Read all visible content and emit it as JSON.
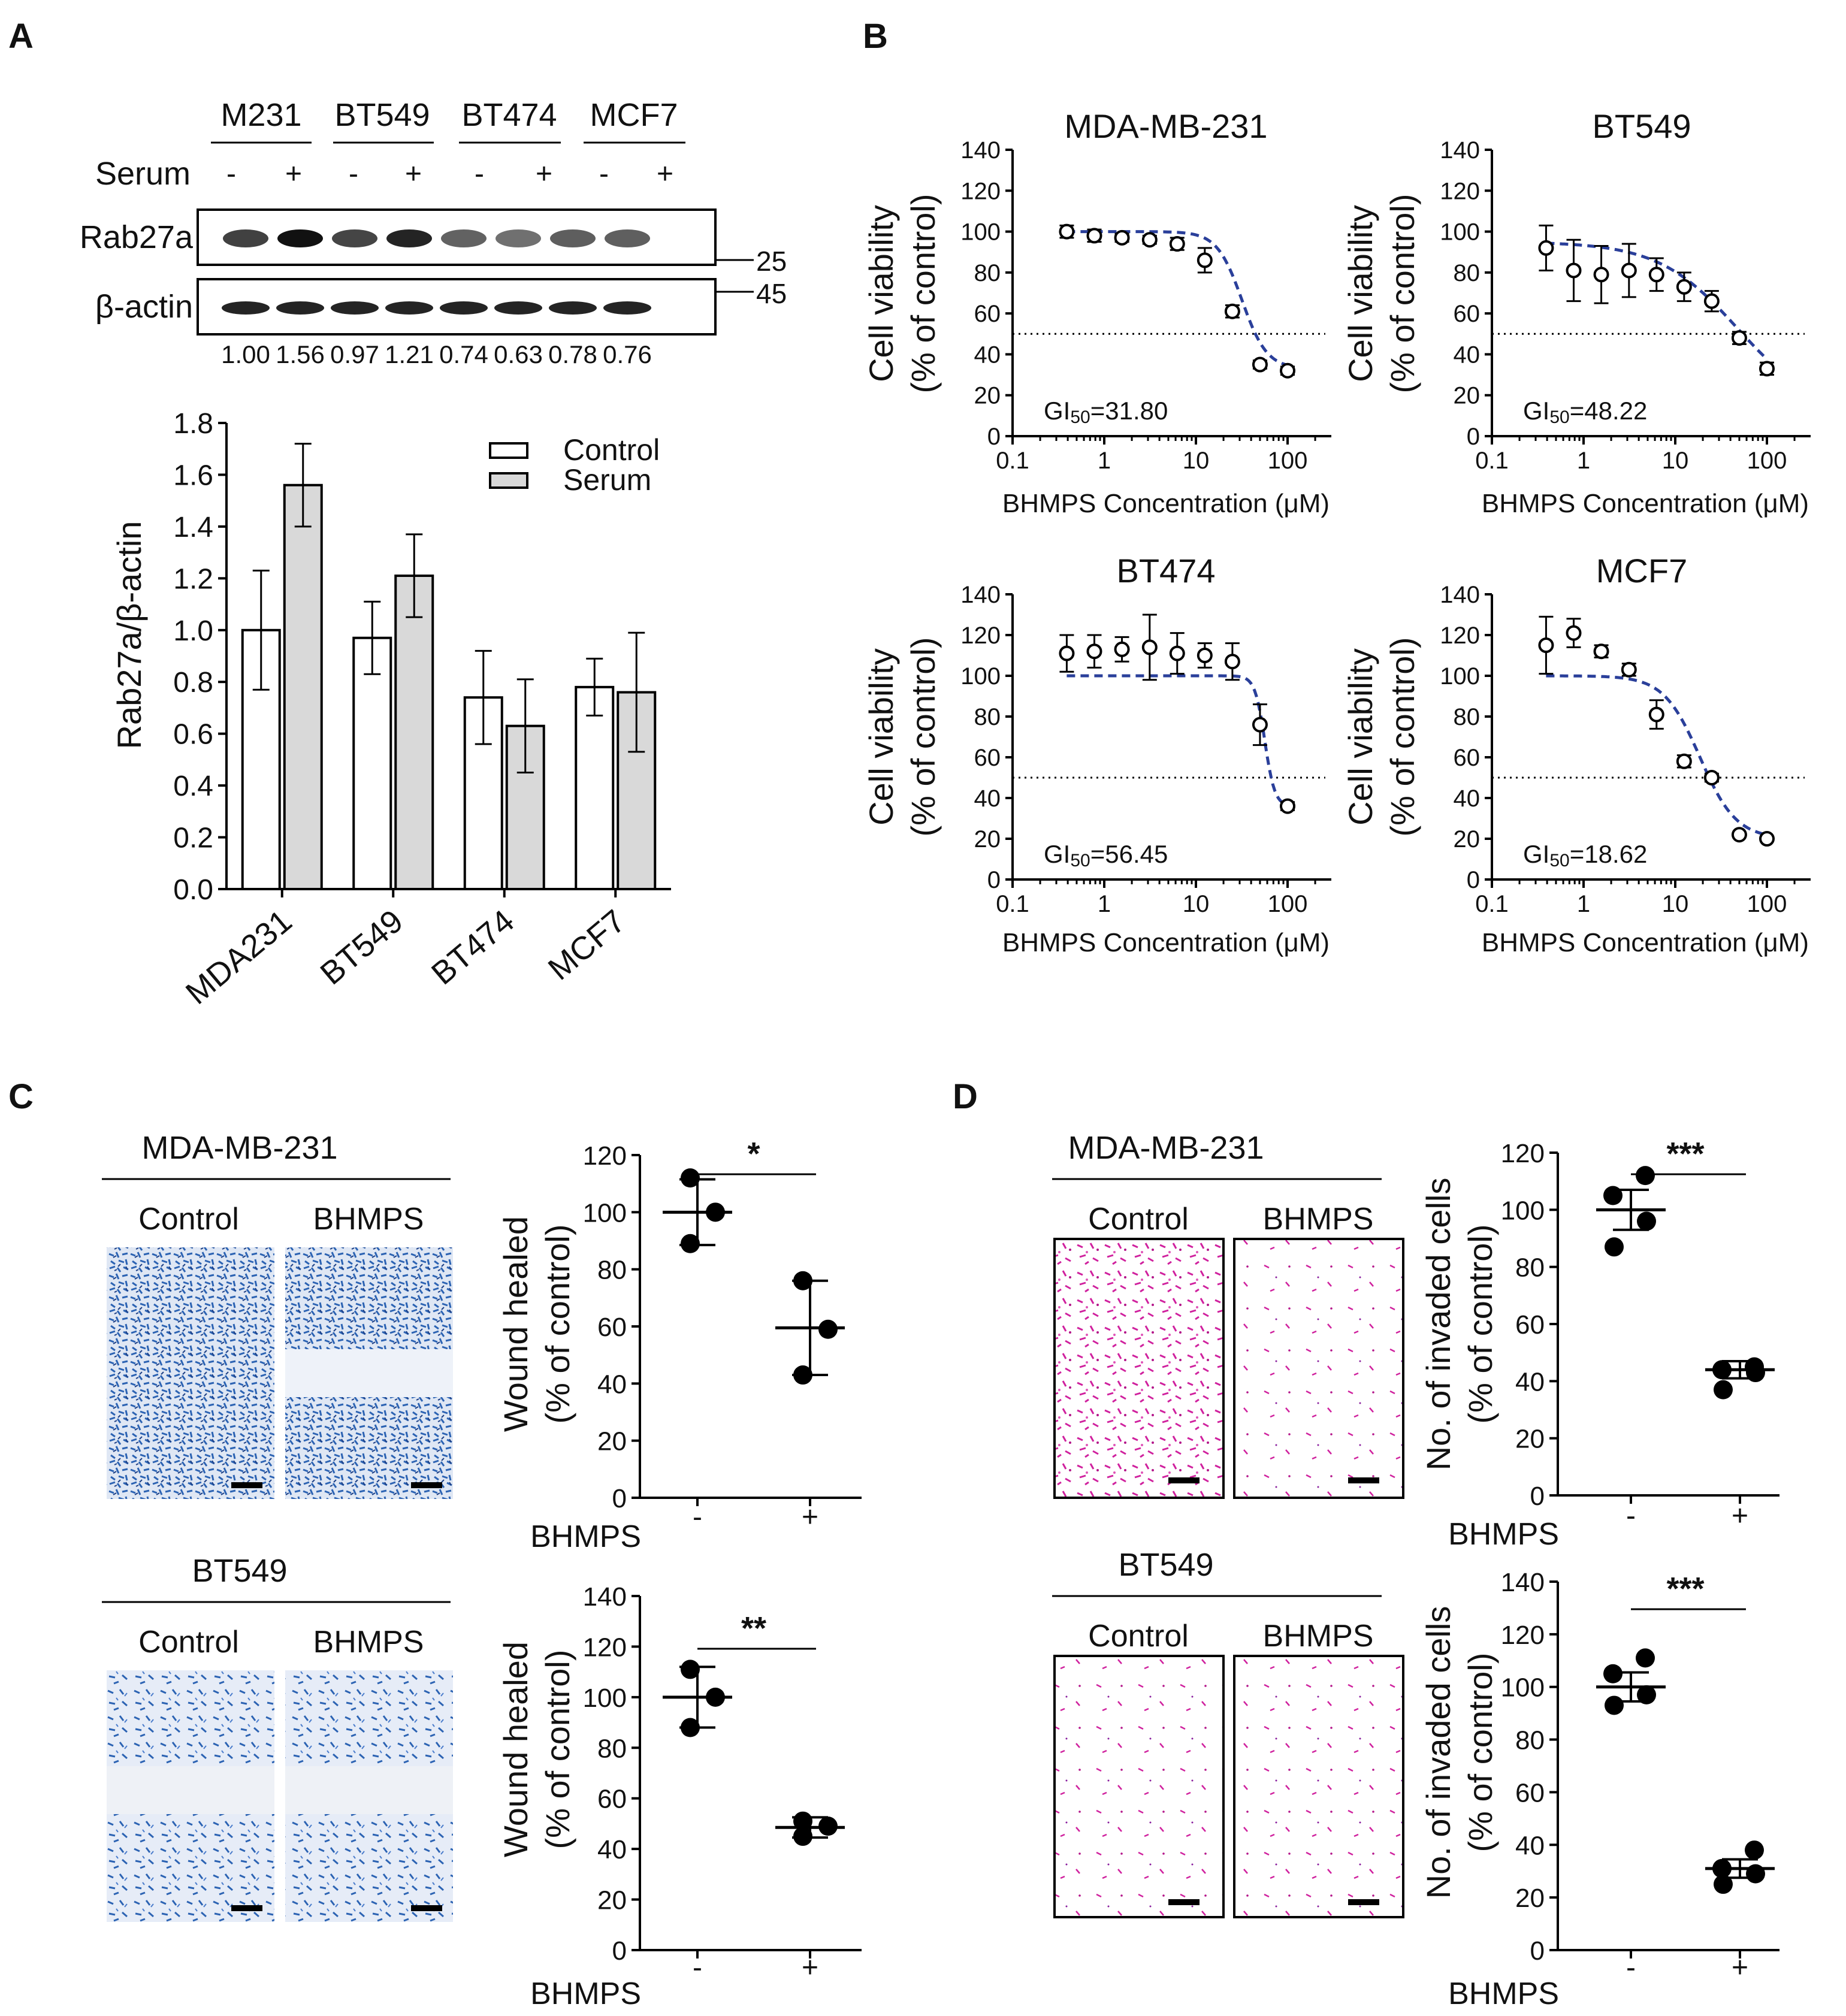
{
  "colors": {
    "micro_blue": "#2c63b3",
    "micro_light": "#cfdcf0",
    "micro_purple": "#d0219e",
    "fit": "#2a3f9a",
    "bar_control": "#ffffff",
    "bar_serum": "#d9d9d9"
  },
  "panels": {
    "A": "A",
    "B": "B",
    "C": "C",
    "D": "D"
  },
  "blot": {
    "groups": [
      "M231",
      "BT549",
      "BT474",
      "MCF7"
    ],
    "serum_label": "Serum",
    "serum_signs": [
      "-",
      "+",
      "-",
      "+",
      "-",
      "+",
      "-",
      "+"
    ],
    "bands": [
      "Rab27a",
      "β-actin"
    ],
    "markers": [
      "25",
      "45"
    ],
    "quant": [
      "1.00",
      "1.56",
      "0.97",
      "1.21",
      "0.74",
      "0.63",
      "0.78",
      "0.76"
    ]
  },
  "chart_data": [
    {
      "id": "A-bar",
      "type": "bar",
      "categories": [
        "MDA231",
        "BT549",
        "BT474",
        "MCF7"
      ],
      "series": [
        {
          "name": "Control",
          "values": [
            1.0,
            0.97,
            0.74,
            0.78
          ],
          "errors": [
            0.23,
            0.14,
            0.18,
            0.11
          ],
          "color": "#ffffff"
        },
        {
          "name": "Serum",
          "values": [
            1.56,
            1.21,
            0.63,
            0.76
          ],
          "errors": [
            0.16,
            0.16,
            0.18,
            0.23
          ],
          "color": "#d9d9d9"
        }
      ],
      "ylabel": "Rab27a/β-actin",
      "ylim": [
        0,
        1.8
      ],
      "yticks": [
        "0.0",
        "0.2",
        "0.4",
        "0.6",
        "0.8",
        "1.0",
        "1.2",
        "1.4",
        "1.6",
        "1.8"
      ],
      "legend": "top-right"
    },
    {
      "id": "B1",
      "type": "scatter",
      "title": "MDA-MB-231",
      "x": [
        0.39,
        0.78,
        1.56,
        3.13,
        6.25,
        12.5,
        25,
        50,
        100
      ],
      "y": [
        100,
        98,
        97,
        96,
        94,
        86,
        61,
        35,
        32
      ],
      "err": [
        3,
        3,
        2,
        2,
        3,
        6,
        3,
        2,
        2
      ],
      "gi50_label": "GI",
      "gi50_sub": "50",
      "gi50_value": "=31.80",
      "gi50": 31.8,
      "hill": 3.2,
      "fit_top": 100,
      "fit_bottom": 33,
      "xlabel": "BHMPS Concentration (μM)",
      "ylabel": [
        "Cell viability",
        "(% of control)"
      ],
      "xticks": [
        "0.1",
        "1",
        "10",
        "100"
      ],
      "yticks": [
        "0",
        "20",
        "40",
        "60",
        "80",
        "100",
        "120",
        "140"
      ],
      "ylim": [
        0,
        140
      ],
      "xlim": [
        0.1,
        300
      ],
      "ref_line": 50
    },
    {
      "id": "B2",
      "type": "scatter",
      "title": "BT549",
      "x": [
        0.39,
        0.78,
        1.56,
        3.13,
        6.25,
        12.5,
        25,
        50,
        100
      ],
      "y": [
        92,
        81,
        79,
        81,
        79,
        73,
        66,
        48,
        33
      ],
      "err": [
        11,
        15,
        14,
        13,
        8,
        7,
        5,
        3,
        3
      ],
      "gi50_label": "GI",
      "gi50_sub": "50",
      "gi50_value": "=48.22",
      "gi50": 48.22,
      "hill": 1.0,
      "fit_top": 95,
      "fit_bottom": 10,
      "xlabel": "BHMPS Concentration (μM)",
      "ylabel": [
        "Cell viability",
        "(% of control)"
      ],
      "xticks": [
        "0.1",
        "1",
        "10",
        "100"
      ],
      "yticks": [
        "0",
        "20",
        "40",
        "60",
        "80",
        "100",
        "120",
        "140"
      ],
      "ylim": [
        0,
        140
      ],
      "xlim": [
        0.1,
        300
      ],
      "ref_line": 50
    },
    {
      "id": "B3",
      "type": "scatter",
      "title": "BT474",
      "x": [
        0.39,
        0.78,
        1.56,
        3.13,
        6.25,
        12.5,
        25,
        50,
        100
      ],
      "y": [
        111,
        112,
        113,
        114,
        111,
        110,
        107,
        76,
        36
      ],
      "err": [
        9,
        8,
        6,
        16,
        10,
        6,
        9,
        10,
        2
      ],
      "gi50_label": "GI",
      "gi50_sub": "50",
      "gi50_value": "=56.45",
      "gi50": 56.45,
      "hill": 8.0,
      "fit_top": 100,
      "fit_bottom": 36,
      "xlabel": "BHMPS Concentration (μM)",
      "ylabel": [
        "Cell viability",
        "(% of control)"
      ],
      "xticks": [
        "0.1",
        "1",
        "10",
        "100"
      ],
      "yticks": [
        "0",
        "20",
        "40",
        "60",
        "80",
        "100",
        "120",
        "140"
      ],
      "ylim": [
        0,
        140
      ],
      "xlim": [
        0.1,
        300
      ],
      "ref_line": 50
    },
    {
      "id": "B4",
      "type": "scatter",
      "title": "MCF7",
      "x": [
        0.39,
        0.78,
        1.56,
        3.13,
        6.25,
        12.5,
        25,
        50,
        100
      ],
      "y": [
        115,
        121,
        112,
        103,
        81,
        58,
        50,
        22,
        20
      ],
      "err": [
        14,
        7,
        3,
        3,
        7,
        3,
        2,
        1,
        1
      ],
      "gi50_label": "GI",
      "gi50_sub": "50",
      "gi50_value": "=18.62",
      "gi50": 18.62,
      "hill": 2.2,
      "fit_top": 100,
      "fit_bottom": 20,
      "xlabel": "BHMPS Concentration (μM)",
      "ylabel": [
        "Cell viability",
        "(% of control)"
      ],
      "xticks": [
        "0.1",
        "1",
        "10",
        "100"
      ],
      "yticks": [
        "0",
        "20",
        "40",
        "60",
        "80",
        "100",
        "120",
        "140"
      ],
      "ylim": [
        0,
        140
      ],
      "xlim": [
        0.1,
        300
      ],
      "ref_line": 50
    },
    {
      "id": "C1",
      "type": "scatter",
      "groups": [
        "-",
        "+"
      ],
      "group_label": "BHMPS",
      "points": [
        [
          89,
          100,
          112
        ],
        [
          43,
          59,
          76
        ]
      ],
      "mean": [
        100,
        59.5
      ],
      "err": [
        11.5,
        16.5
      ],
      "sig": "*",
      "ylabel": [
        "Wound healed",
        "(% of control)"
      ],
      "ylim": [
        0,
        120
      ],
      "yticks": [
        "0",
        "20",
        "40",
        "60",
        "80",
        "100",
        "120"
      ]
    },
    {
      "id": "C2",
      "type": "scatter",
      "groups": [
        "-",
        "+"
      ],
      "group_label": "BHMPS",
      "points": [
        [
          88,
          100,
          111
        ],
        [
          45,
          49,
          51
        ]
      ],
      "mean": [
        100,
        48.5
      ],
      "err": [
        12,
        4
      ],
      "sig": "**",
      "ylabel": [
        "Wound healed",
        "(% of control)"
      ],
      "ylim": [
        0,
        140
      ],
      "yticks": [
        "0",
        "20",
        "40",
        "60",
        "80",
        "100",
        "120",
        "140"
      ]
    },
    {
      "id": "D1",
      "type": "scatter",
      "groups": [
        "-",
        "+"
      ],
      "group_label": "BHMPS",
      "points": [
        [
          87,
          96,
          105,
          112
        ],
        [
          37,
          43,
          44,
          45
        ]
      ],
      "mean": [
        100,
        44
      ],
      "err": [
        7,
        3
      ],
      "sig": "***",
      "ylabel": [
        "No. of invaded cells",
        "(% of control)"
      ],
      "ylim": [
        0,
        120
      ],
      "yticks": [
        "0",
        "20",
        "40",
        "60",
        "80",
        "100",
        "120"
      ]
    },
    {
      "id": "D2",
      "type": "scatter",
      "groups": [
        "-",
        "+"
      ],
      "group_label": "BHMPS",
      "points": [
        [
          93,
          97,
          105,
          111
        ],
        [
          25,
          29,
          31,
          38
        ]
      ],
      "mean": [
        100,
        31
      ],
      "err": [
        5.5,
        3.5
      ],
      "sig": "***",
      "ylabel": [
        "No. of invaded cells",
        "(% of control)"
      ],
      "ylim": [
        0,
        140
      ],
      "yticks": [
        "0",
        "20",
        "40",
        "60",
        "80",
        "100",
        "120",
        "140"
      ]
    }
  ],
  "micro": {
    "C": [
      {
        "cell": "MDA-MB-231",
        "conditions": [
          "Control",
          "BHMPS"
        ]
      },
      {
        "cell": "BT549",
        "conditions": [
          "Control",
          "BHMPS"
        ]
      }
    ],
    "D": [
      {
        "cell": "MDA-MB-231",
        "conditions": [
          "Control",
          "BHMPS"
        ]
      },
      {
        "cell": "BT549",
        "conditions": [
          "Control",
          "BHMPS"
        ]
      }
    ]
  }
}
